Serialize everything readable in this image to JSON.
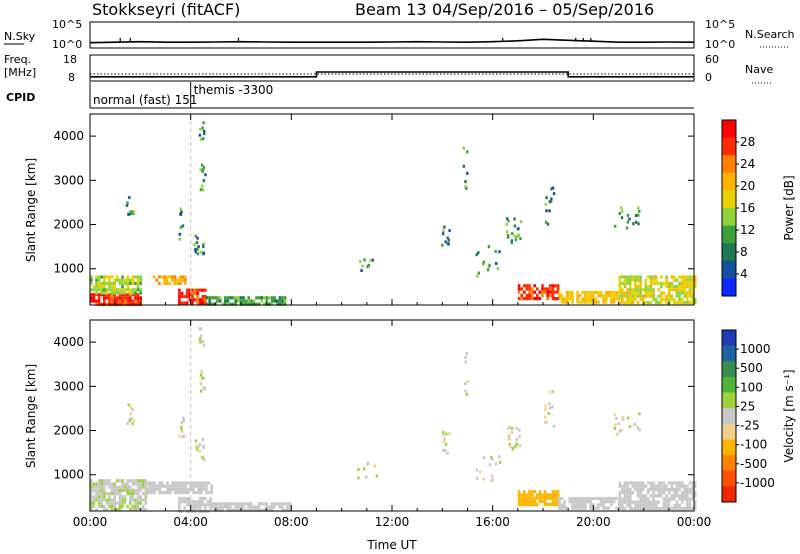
{
  "header": {
    "station": "Stokkseyri (fitACF)",
    "beam_label": "Beam 13",
    "date_range": "04/Sep/2016 – 05/Sep/2016"
  },
  "nsky_panel": {
    "left_label": "N.Sky",
    "right_label": "N.Search",
    "left_ticks": [
      "10^5",
      "10^0"
    ],
    "right_ticks": [
      "10^5",
      "10^0"
    ],
    "nsky_log10": [
      0.9,
      1.0,
      1.1,
      1.0,
      1.0,
      1.05,
      1.1,
      1.05,
      1.0,
      1.0,
      1.0,
      1.0,
      1.05,
      1.1,
      1.05,
      1.0,
      1.1,
      1.3,
      1.6,
      1.4,
      1.2,
      1.0,
      1.0,
      1.05,
      1.0
    ],
    "spikes_hour": [
      1.2,
      1.6,
      5.9,
      16.4,
      19.3,
      19.6,
      19.9
    ]
  },
  "freq_panel": {
    "left_label_1": "Freq.",
    "left_label_2": "[MHz]",
    "right_label": "Nave",
    "left_ticks": [
      "18",
      "8"
    ],
    "right_ticks": [
      "60",
      "0"
    ],
    "freq_mhz": 10.5,
    "nave_steps": [
      {
        "from": 0,
        "to": 9,
        "value": 8
      },
      {
        "from": 9,
        "to": 19,
        "value": 20
      },
      {
        "from": 19,
        "to": 24,
        "value": 8
      }
    ]
  },
  "cpid": {
    "label": "CPID",
    "programs": [
      {
        "name": "normal (fast) 151",
        "start_hour": 0
      },
      {
        "name": "themis -3300",
        "start_hour": 4.0
      }
    ]
  },
  "power_colorbar": {
    "title": "Power [dB]",
    "ticks": [
      "28",
      "24",
      "20",
      "16",
      "12",
      "8",
      "4"
    ],
    "colors": [
      "#ff0000",
      "#ff2a00",
      "#ff8000",
      "#ffb300",
      "#e8d200",
      "#90d23c",
      "#3ca03c",
      "#1e7850",
      "#1450a0",
      "#0a28ff"
    ]
  },
  "velocity_colorbar": {
    "title": "Velocity [m s⁻¹]",
    "ticks": [
      "1000",
      "500",
      "100",
      "25",
      "-25",
      "-100",
      "-500",
      "-1000"
    ],
    "colors": [
      "#1e3cb4",
      "#1e64a0",
      "#3c8c50",
      "#50b43c",
      "#a0d23c",
      "#c8c8c8",
      "#f0d28c",
      "#ffb400",
      "#ff8200",
      "#ff5000",
      "#f02800"
    ]
  },
  "chart_data": [
    {
      "type": "heatmap",
      "panel": "power",
      "xlabel": "Time UT",
      "ylabel": "Slant Range [km]",
      "x_ticks": [
        "00:00",
        "04:00",
        "08:00",
        "12:00",
        "16:00",
        "20:00",
        "00:00"
      ],
      "y_ticks": [
        "1000",
        "2000",
        "3000",
        "4000"
      ],
      "xlim_hours": [
        0,
        24
      ],
      "ylim_km": [
        180,
        4500
      ],
      "colorbar_range_db": [
        0,
        30
      ],
      "echo_regions": [
        {
          "t0": 0.0,
          "t1": 2.0,
          "r0": 200,
          "r1": 450,
          "value": 26
        },
        {
          "t0": 0.0,
          "t1": 2.0,
          "r0": 450,
          "r1": 850,
          "value": 14
        },
        {
          "t0": 2.5,
          "t1": 3.8,
          "r0": 650,
          "r1": 850,
          "value": 20
        },
        {
          "t0": 3.5,
          "t1": 4.6,
          "r0": 250,
          "r1": 550,
          "value": 26
        },
        {
          "t0": 4.6,
          "t1": 7.8,
          "r0": 200,
          "r1": 380,
          "value": 10
        },
        {
          "t0": 17.0,
          "t1": 18.6,
          "r0": 300,
          "r1": 650,
          "value": 26
        },
        {
          "t0": 18.6,
          "t1": 21.0,
          "r0": 250,
          "r1": 500,
          "value": 18
        },
        {
          "t0": 21.0,
          "t1": 24.0,
          "r0": 250,
          "r1": 850,
          "value": 16
        }
      ],
      "scatter_clusters": [
        {
          "t": 1.55,
          "r": 2400,
          "spread_t": 0.15,
          "spread_r": 250,
          "n": 10
        },
        {
          "t": 3.6,
          "r": 2050,
          "spread_t": 0.1,
          "spread_r": 350,
          "n": 9
        },
        {
          "t": 4.3,
          "r": 1600,
          "spread_t": 0.2,
          "spread_r": 250,
          "n": 14
        },
        {
          "t": 4.45,
          "r": 3050,
          "spread_t": 0.1,
          "spread_r": 350,
          "n": 10
        },
        {
          "t": 4.4,
          "r": 4150,
          "spread_t": 0.1,
          "spread_r": 200,
          "n": 8
        },
        {
          "t": 14.1,
          "r": 1750,
          "spread_t": 0.15,
          "spread_r": 250,
          "n": 10
        },
        {
          "t": 14.9,
          "r": 3350,
          "spread_t": 0.1,
          "spread_r": 500,
          "n": 7
        },
        {
          "t": 16.8,
          "r": 1900,
          "spread_t": 0.3,
          "spread_r": 300,
          "n": 20
        },
        {
          "t": 18.2,
          "r": 2500,
          "spread_t": 0.2,
          "spread_r": 500,
          "n": 12
        },
        {
          "t": 21.3,
          "r": 2200,
          "spread_t": 0.5,
          "spread_r": 250,
          "n": 16
        },
        {
          "t": 11.0,
          "r": 1100,
          "spread_t": 0.4,
          "spread_r": 200,
          "n": 8
        },
        {
          "t": 15.8,
          "r": 1200,
          "spread_t": 0.5,
          "spread_r": 350,
          "n": 14
        }
      ]
    },
    {
      "type": "heatmap",
      "panel": "velocity",
      "xlabel": "Time UT",
      "ylabel": "Slant Range [km]",
      "x_ticks": [
        "00:00",
        "04:00",
        "08:00",
        "12:00",
        "16:00",
        "20:00",
        "00:00"
      ],
      "y_ticks": [
        "1000",
        "2000",
        "3000",
        "4000"
      ],
      "xlim_hours": [
        0,
        24
      ],
      "ylim_km": [
        180,
        4500
      ],
      "colorbar_range_ms": [
        -1000,
        1000
      ],
      "echo_regions": [
        {
          "t0": 0.0,
          "t1": 2.2,
          "r0": 200,
          "r1": 900,
          "value": 80
        },
        {
          "t0": 2.2,
          "t1": 4.8,
          "r0": 600,
          "r1": 850,
          "value": 0
        },
        {
          "t0": 3.5,
          "t1": 4.8,
          "r0": 200,
          "r1": 500,
          "value": 60
        },
        {
          "t0": 4.8,
          "t1": 8.0,
          "r0": 200,
          "r1": 380,
          "value": 0
        },
        {
          "t0": 17.0,
          "t1": 18.6,
          "r0": 300,
          "r1": 650,
          "value": -400
        },
        {
          "t0": 18.6,
          "t1": 21.0,
          "r0": 250,
          "r1": 500,
          "value": -60
        },
        {
          "t0": 21.0,
          "t1": 24.0,
          "r0": 250,
          "r1": 850,
          "value": 0
        }
      ],
      "scatter_clusters": [
        {
          "t": 1.55,
          "r": 2400,
          "spread_t": 0.15,
          "spread_r": 250,
          "n": 10
        },
        {
          "t": 3.6,
          "r": 2050,
          "spread_t": 0.1,
          "spread_r": 350,
          "n": 9
        },
        {
          "t": 4.3,
          "r": 1600,
          "spread_t": 0.2,
          "spread_r": 250,
          "n": 14
        },
        {
          "t": 4.45,
          "r": 3050,
          "spread_t": 0.1,
          "spread_r": 350,
          "n": 10
        },
        {
          "t": 4.4,
          "r": 4150,
          "spread_t": 0.1,
          "spread_r": 200,
          "n": 8
        },
        {
          "t": 14.1,
          "r": 1750,
          "spread_t": 0.15,
          "spread_r": 250,
          "n": 10
        },
        {
          "t": 14.9,
          "r": 3350,
          "spread_t": 0.1,
          "spread_r": 500,
          "n": 7
        },
        {
          "t": 16.8,
          "r": 1900,
          "spread_t": 0.3,
          "spread_r": 300,
          "n": 20
        },
        {
          "t": 18.2,
          "r": 2500,
          "spread_t": 0.2,
          "spread_r": 500,
          "n": 12
        },
        {
          "t": 21.3,
          "r": 2200,
          "spread_t": 0.5,
          "spread_r": 250,
          "n": 16
        },
        {
          "t": 11.0,
          "r": 1100,
          "spread_t": 0.4,
          "spread_r": 200,
          "n": 8
        },
        {
          "t": 15.8,
          "r": 1200,
          "spread_t": 0.5,
          "spread_r": 350,
          "n": 14
        }
      ]
    }
  ]
}
